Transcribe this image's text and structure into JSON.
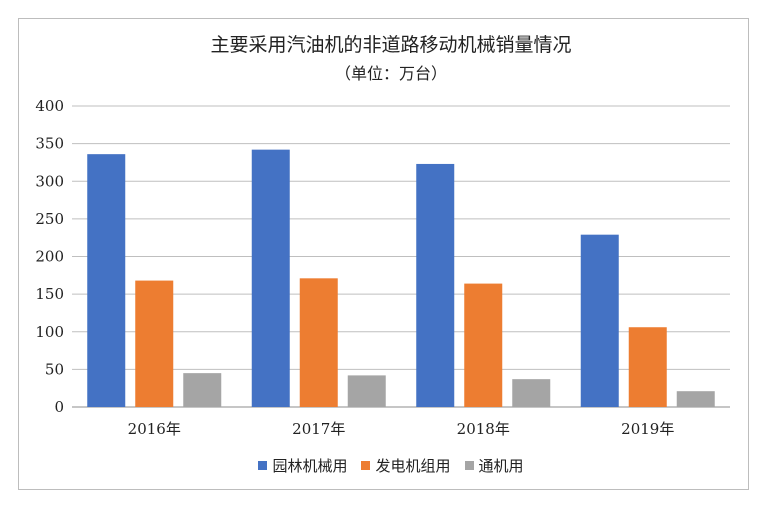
{
  "chart_data": {
    "type": "bar",
    "title": "主要采用汽油机的非道路移动机械销量情况",
    "subtitle": "（单位：万台）",
    "categories": [
      "2016年",
      "2017年",
      "2018年",
      "2019年"
    ],
    "series": [
      {
        "name": "园林机械用",
        "color": "#4472C4",
        "values": [
          336,
          342,
          323,
          229
        ]
      },
      {
        "name": "发电机组用",
        "color": "#ED7D31",
        "values": [
          168,
          171,
          164,
          106
        ]
      },
      {
        "name": "通机用",
        "color": "#A5A5A5",
        "values": [
          45,
          42,
          37,
          21
        ]
      }
    ],
    "ylim": [
      0,
      400
    ],
    "yticks": [
      0,
      50,
      100,
      150,
      200,
      250,
      300,
      350,
      400
    ],
    "grid": true,
    "legend": "bottom"
  }
}
